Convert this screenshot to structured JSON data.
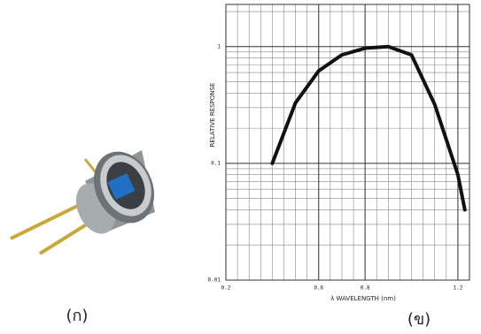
{
  "chart_data": {
    "type": "line",
    "y_label": "RELATIVE RESPONSE",
    "x_label": "λ  WAVELENGTH (nm)",
    "x": [
      0.4,
      0.5,
      0.6,
      0.7,
      0.8,
      0.9,
      1.0,
      1.1,
      1.2,
      1.23
    ],
    "series": [
      {
        "color": "#111111",
        "values": [
          0.1,
          0.33,
          0.62,
          0.85,
          0.97,
          1.0,
          0.85,
          0.32,
          0.08,
          0.04
        ]
      }
    ],
    "xlim": [
      0.2,
      1.25
    ],
    "xticks": [
      0.2,
      0.6,
      0.8,
      1.2
    ],
    "ylim": [
      0.01,
      2.3
    ],
    "yticks": [
      0.01,
      0.1,
      1
    ],
    "log_y": true,
    "grid": true
  },
  "captions": {
    "left": "(ก)",
    "right": "(ข)"
  }
}
